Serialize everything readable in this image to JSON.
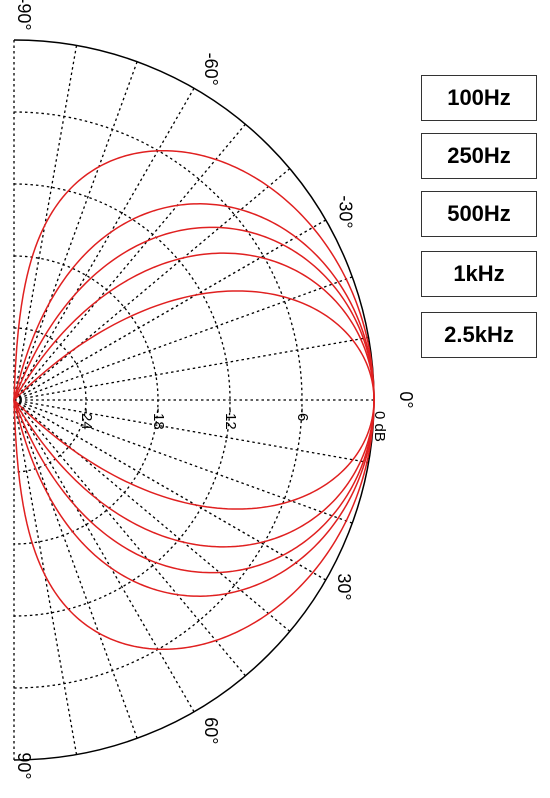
{
  "chart_data": {
    "type": "polar",
    "title": "",
    "legend": {
      "placement": "right",
      "entries": [
        "100Hz",
        "250Hz",
        "500Hz",
        "1kHz",
        "2.5kHz"
      ]
    },
    "radial_axis": {
      "unit_label": "0 dB",
      "tick_labels": [
        "-24",
        "-18",
        "-12",
        "-6"
      ],
      "range_db": [
        -30,
        0
      ],
      "step_db": 6
    },
    "angular_axis": {
      "tick_labels": [
        "-90°",
        "-60°",
        "-30°",
        "0°",
        "30°",
        "60°",
        "90°"
      ],
      "range_deg": [
        -90,
        90
      ],
      "grid_step_deg": 10
    },
    "grid": true,
    "series_color": "#e02020",
    "series": [
      {
        "name": "100Hz",
        "shape": "cosine_power",
        "exponent": 1.0
      },
      {
        "name": "250Hz",
        "shape": "cosine_power",
        "exponent": 2.3
      },
      {
        "name": "500Hz",
        "shape": "cosine_power",
        "exponent": 3.3
      },
      {
        "name": "1kHz",
        "shape": "cosine_power",
        "exponent": 5.0
      },
      {
        "name": "2.5kHz",
        "shape": "cosine_power",
        "exponent": 10.0
      }
    ]
  }
}
